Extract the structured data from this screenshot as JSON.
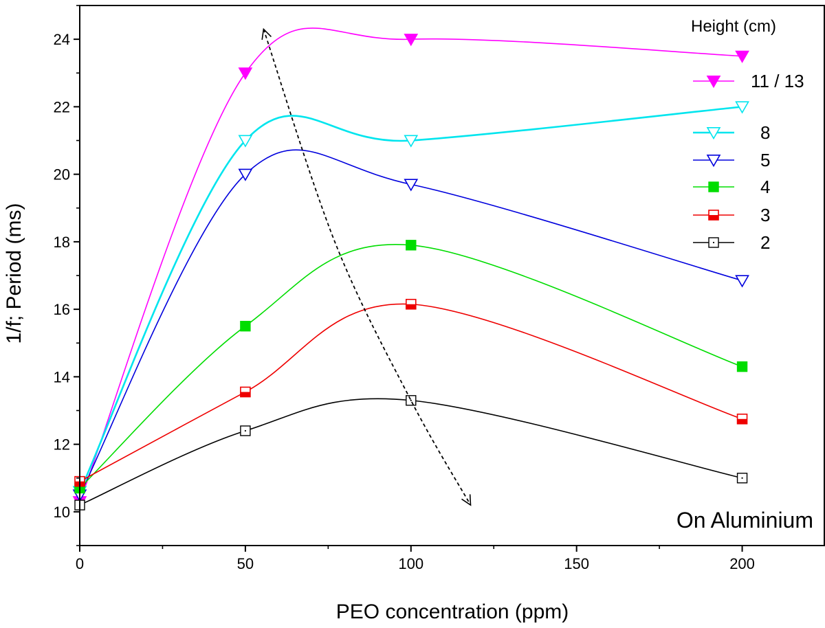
{
  "chart_data": {
    "type": "line",
    "title": "",
    "xlabel": "PEO concentration (ppm)",
    "ylabel": "1/f; Period (ms)",
    "x_ticks": [
      0,
      50,
      100,
      150,
      200
    ],
    "y_ticks": [
      10,
      12,
      14,
      16,
      18,
      20,
      22,
      24
    ],
    "xlim": [
      0,
      225
    ],
    "ylim": [
      9,
      25
    ],
    "grid": false,
    "legend_title": "Height (cm)",
    "legend_position": "top-right",
    "annotation": "On Aluminium",
    "x": [
      0,
      50,
      100,
      200
    ],
    "series": [
      {
        "name": "11 / 13",
        "color": "#ff00ff",
        "marker": "triangle-down-filled",
        "values": [
          10.3,
          23.0,
          24.0,
          23.5
        ]
      },
      {
        "name": "8",
        "color": "#00e5ee",
        "marker": "triangle-down-open",
        "values": [
          10.6,
          21.0,
          21.0,
          22.0
        ]
      },
      {
        "name": "5",
        "color": "#0000dd",
        "marker": "triangle-down-open",
        "values": [
          10.5,
          20.0,
          19.7,
          16.85
        ]
      },
      {
        "name": "4",
        "color": "#00dd00",
        "marker": "square-filled",
        "values": [
          10.7,
          15.5,
          17.9,
          14.3
        ]
      },
      {
        "name": "3",
        "color": "#ee0000",
        "marker": "square-half",
        "values": [
          10.9,
          13.55,
          16.15,
          12.75
        ]
      },
      {
        "name": "2",
        "color": "#000000",
        "marker": "square-open-dot",
        "values": [
          10.2,
          12.4,
          13.3,
          11.0
        ]
      }
    ],
    "trend_arrow": {
      "style": "dashed",
      "points": [
        [
          55.5,
          24.3
        ],
        [
          77,
          18.0
        ],
        [
          100,
          13.3
        ],
        [
          118,
          10.2
        ]
      ]
    }
  }
}
